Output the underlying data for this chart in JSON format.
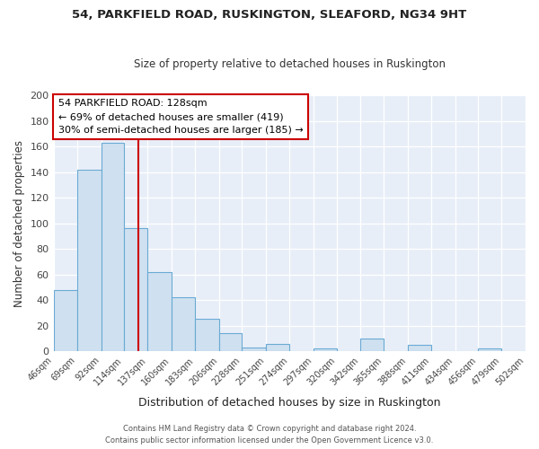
{
  "title": "54, PARKFIELD ROAD, RUSKINGTON, SLEAFORD, NG34 9HT",
  "subtitle": "Size of property relative to detached houses in Ruskington",
  "xlabel": "Distribution of detached houses by size in Ruskington",
  "ylabel": "Number of detached properties",
  "bar_values": [
    48,
    142,
    163,
    96,
    62,
    42,
    25,
    14,
    3,
    6,
    0,
    2,
    0,
    10,
    0,
    5,
    0,
    0,
    2,
    0
  ],
  "bin_labels": [
    "46sqm",
    "69sqm",
    "92sqm",
    "114sqm",
    "137sqm",
    "160sqm",
    "183sqm",
    "206sqm",
    "228sqm",
    "251sqm",
    "274sqm",
    "297sqm",
    "320sqm",
    "342sqm",
    "365sqm",
    "388sqm",
    "411sqm",
    "434sqm",
    "456sqm",
    "479sqm",
    "502sqm"
  ],
  "bin_edges": [
    46,
    69,
    92,
    114,
    137,
    160,
    183,
    206,
    228,
    251,
    274,
    297,
    320,
    342,
    365,
    388,
    411,
    434,
    456,
    479,
    502
  ],
  "bar_color": "#cfe0f0",
  "bar_edge_color": "#6aaad4",
  "property_size": 128,
  "vline_color": "#cc0000",
  "annotation_line1": "54 PARKFIELD ROAD: 128sqm",
  "annotation_line2": "← 69% of detached houses are smaller (419)",
  "annotation_line3": "30% of semi-detached houses are larger (185) →",
  "annotation_box_color": "#ffffff",
  "annotation_box_edge": "#cc0000",
  "ylim": [
    0,
    200
  ],
  "yticks": [
    0,
    20,
    40,
    60,
    80,
    100,
    120,
    140,
    160,
    180,
    200
  ],
  "footer1": "Contains HM Land Registry data © Crown copyright and database right 2024.",
  "footer2": "Contains public sector information licensed under the Open Government Licence v3.0.",
  "bg_color": "#ffffff",
  "plot_bg_color": "#e8eef8"
}
